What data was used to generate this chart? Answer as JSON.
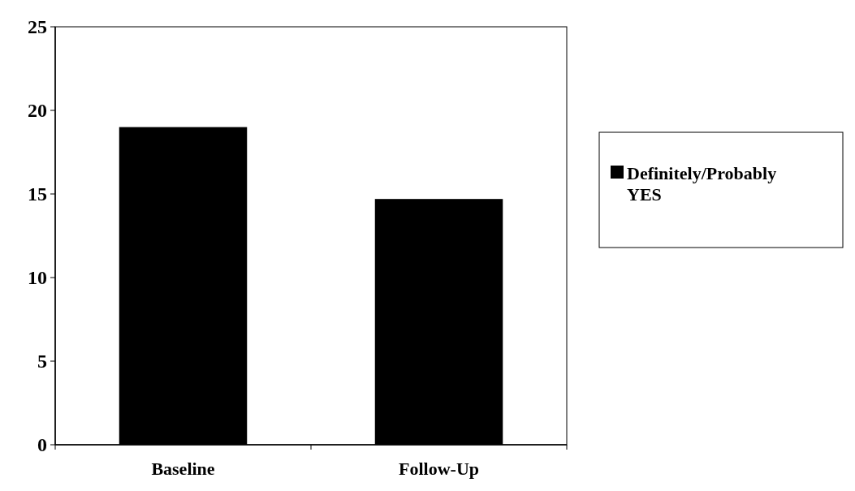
{
  "chart_data": {
    "type": "bar",
    "categories": [
      "Baseline",
      "Follow-Up"
    ],
    "series": [
      {
        "name": "Definitely/Probably YES",
        "color": "#000000",
        "values": [
          19,
          14.7
        ]
      }
    ],
    "ylim": [
      0,
      25
    ],
    "yticks": [
      0,
      5,
      10,
      15,
      20,
      25
    ],
    "legend": "right",
    "grid": false
  }
}
